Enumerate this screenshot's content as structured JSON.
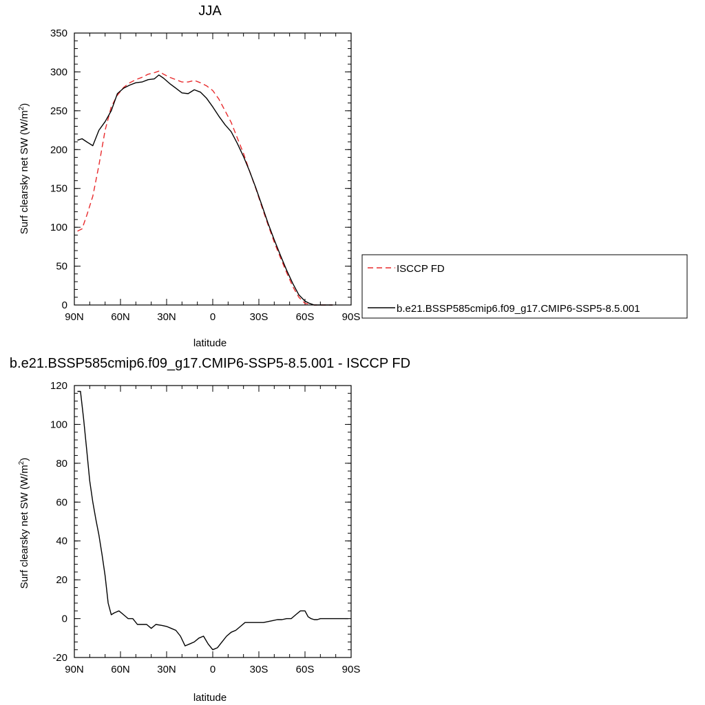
{
  "chart_data": [
    {
      "type": "line",
      "title": "JJA",
      "xlabel": "latitude",
      "ylabel": "Surf clearsky net SW (W/m",
      "ylabel_sup": "2",
      "ylabel_close": ")",
      "xlim": [
        90,
        -90
      ],
      "ylim": [
        0,
        350
      ],
      "x_ticks": [
        90,
        60,
        30,
        0,
        -30,
        -60,
        -90
      ],
      "x_tick_labels": [
        "90N",
        "60N",
        "30N",
        "0",
        "30S",
        "60S",
        "90S"
      ],
      "y_ticks": [
        0,
        50,
        100,
        150,
        200,
        250,
        300,
        350
      ],
      "y_tick_labels": [
        "0",
        "50",
        "100",
        "150",
        "200",
        "250",
        "300",
        "350"
      ],
      "grid": false,
      "legend_placement": "right",
      "series": [
        {
          "name": "ISCCP FD",
          "color": "#e8292b",
          "dash": "dashed",
          "x": [
            88,
            85,
            82,
            78,
            74,
            70,
            66,
            62,
            58,
            54,
            50,
            46,
            42,
            38,
            35,
            32,
            28,
            24,
            20,
            16,
            12,
            8,
            4,
            0,
            -4,
            -8,
            -12,
            -16,
            -20,
            -24,
            -28,
            -32,
            -36,
            -40,
            -44,
            -48,
            -52,
            -56,
            -60,
            -63,
            -66,
            -68,
            -70,
            -72,
            -74,
            -76,
            -78
          ],
          "y": [
            95,
            98,
            115,
            140,
            180,
            225,
            255,
            270,
            280,
            286,
            290,
            293,
            297,
            299,
            301,
            297,
            293,
            290,
            287,
            287,
            289,
            286,
            282,
            276,
            265,
            250,
            235,
            215,
            195,
            172,
            150,
            126,
            103,
            81,
            61,
            42,
            24,
            10,
            2,
            1,
            0,
            0,
            0,
            0,
            0,
            0,
            0
          ]
        },
        {
          "name": "b.e21.BSSP585cmip6.f09_g17.CMIP6-SSP5-8.5.001",
          "color": "#000000",
          "dash": "solid",
          "x": [
            88,
            85,
            82,
            78,
            74,
            70,
            66,
            62,
            58,
            54,
            50,
            46,
            42,
            38,
            35,
            32,
            28,
            24,
            20,
            16,
            12,
            8,
            4,
            0,
            -4,
            -8,
            -12,
            -16,
            -20,
            -24,
            -28,
            -32,
            -36,
            -40,
            -44,
            -48,
            -52,
            -56,
            -60,
            -63,
            -66,
            -68,
            -70,
            -72,
            -74,
            -76,
            -78
          ],
          "y": [
            212,
            214,
            210,
            205,
            225,
            236,
            250,
            272,
            279,
            283,
            286,
            287,
            290,
            291,
            296,
            292,
            285,
            279,
            273,
            272,
            277,
            274,
            266,
            255,
            243,
            232,
            223,
            208,
            191,
            172,
            151,
            128,
            105,
            84,
            64,
            45,
            28,
            13,
            5,
            2,
            0,
            0,
            0,
            0,
            0,
            0,
            0
          ]
        }
      ]
    },
    {
      "type": "line",
      "title": "b.e21.BSSP585cmip6.f09_g17.CMIP6-SSP5-8.5.001 - ISCCP FD",
      "xlabel": "latitude",
      "ylabel": "Surf clearsky net SW (W/m",
      "ylabel_sup": "2",
      "ylabel_close": ")",
      "xlim": [
        90,
        -90
      ],
      "ylim": [
        -20,
        120
      ],
      "x_ticks": [
        90,
        60,
        30,
        0,
        -30,
        -60,
        -90
      ],
      "x_tick_labels": [
        "90N",
        "60N",
        "30N",
        "0",
        "30S",
        "60S",
        "90S"
      ],
      "y_ticks": [
        -20,
        0,
        20,
        40,
        60,
        80,
        100,
        120
      ],
      "y_tick_labels": [
        "-20",
        "0",
        "20",
        "40",
        "60",
        "80",
        "100",
        "120"
      ],
      "grid": false,
      "series": [
        {
          "color": "#000000",
          "dash": "solid",
          "x": [
            88,
            86,
            84,
            82,
            80,
            78,
            76,
            74,
            72,
            70,
            68,
            66,
            64,
            61,
            58,
            55,
            52,
            49,
            46,
            43,
            40,
            37,
            33,
            30,
            27,
            24,
            21,
            18,
            15,
            12,
            9,
            6,
            3,
            0,
            -3,
            -6,
            -9,
            -12,
            -15,
            -18,
            -21,
            -24,
            -27,
            -30,
            -33,
            -36,
            -39,
            -42,
            -45,
            -48,
            -51,
            -54,
            -57,
            -60,
            -62,
            -64,
            -66,
            -68,
            -70,
            -72,
            -75,
            -80,
            -85,
            -88
          ],
          "y": [
            117,
            117,
            103,
            87,
            71,
            60,
            51,
            43,
            33,
            22,
            8,
            2,
            3,
            4,
            2,
            0,
            0,
            -3,
            -3,
            -3,
            -5,
            -3,
            -3.5,
            -4,
            -5,
            -6,
            -9,
            -14,
            -13,
            -12,
            -10,
            -9,
            -13,
            -16,
            -15,
            -12,
            -9,
            -7,
            -6,
            -4,
            -2,
            -2,
            -2,
            -2,
            -2,
            -1.5,
            -1,
            -0.5,
            -0.5,
            0,
            0,
            2,
            4,
            4,
            1,
            0,
            -0.5,
            -0.5,
            0,
            0,
            0,
            0,
            0,
            0
          ]
        }
      ]
    }
  ]
}
